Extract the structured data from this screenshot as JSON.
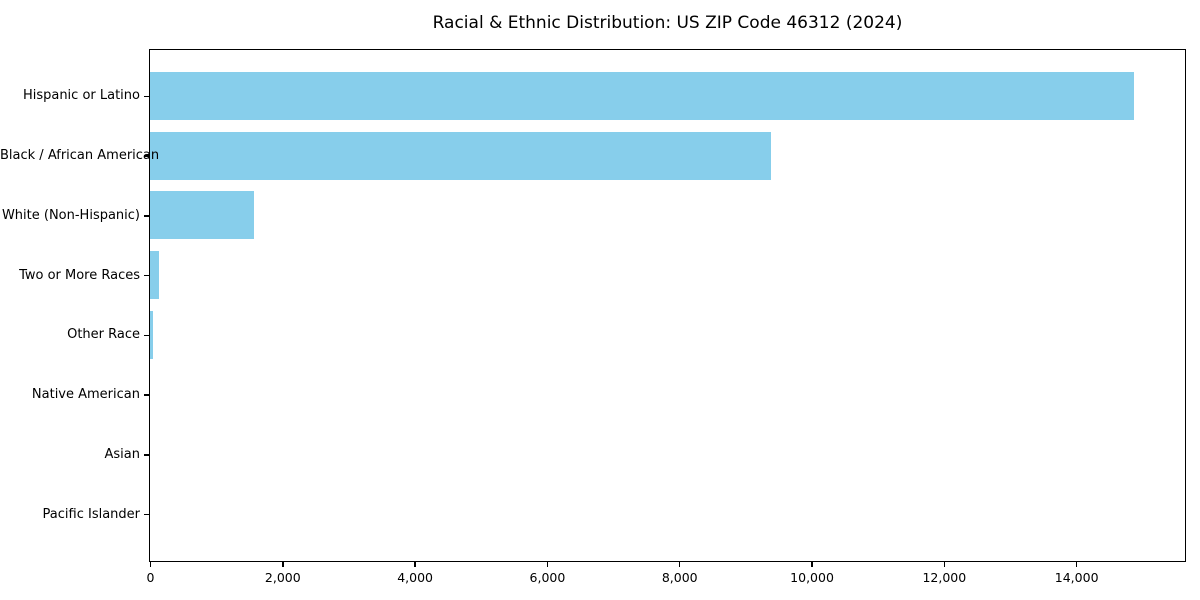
{
  "chart_data": {
    "type": "bar",
    "orientation": "horizontal",
    "title": "Racial & Ethnic Distribution: US ZIP Code 46312 (2024)",
    "categories": [
      "Hispanic or Latino",
      "Black / African American",
      "White (Non-Hispanic)",
      "Two or More Races",
      "Other Race",
      "Native American",
      "Asian",
      "Pacific Islander"
    ],
    "values": [
      14880,
      9390,
      1570,
      130,
      50,
      0,
      0,
      0
    ],
    "xlabel": "",
    "ylabel": "",
    "xlim": [
      0,
      15630
    ],
    "x_ticks": [
      0,
      2000,
      4000,
      6000,
      8000,
      10000,
      12000,
      14000
    ],
    "x_tick_labels": [
      "0",
      "2,000",
      "4,000",
      "6,000",
      "8,000",
      "10,000",
      "12,000",
      "14,000"
    ],
    "bar_color": "#87CEEB",
    "background_color": "#ffffff",
    "spine_color": "#000000",
    "grid": false,
    "legend": false
  }
}
